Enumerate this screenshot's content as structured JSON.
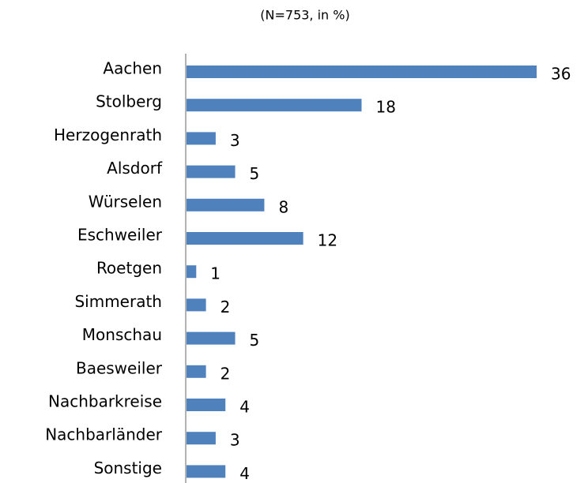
{
  "chart_data": {
    "type": "bar",
    "orientation": "horizontal",
    "title": "(N=753, in %)",
    "categories": [
      "Aachen",
      "Stolberg",
      "Herzogenrath",
      "Alsdorf",
      "Würselen",
      "Eschweiler",
      "Roetgen",
      "Simmerath",
      "Monschau",
      "Baesweiler",
      "Nachbarkreise",
      "Nachbarländer",
      "Sonstige"
    ],
    "values": [
      36,
      18,
      3,
      5,
      8,
      12,
      1,
      2,
      5,
      2,
      4,
      3,
      4
    ],
    "color": "#4f81bd"
  }
}
